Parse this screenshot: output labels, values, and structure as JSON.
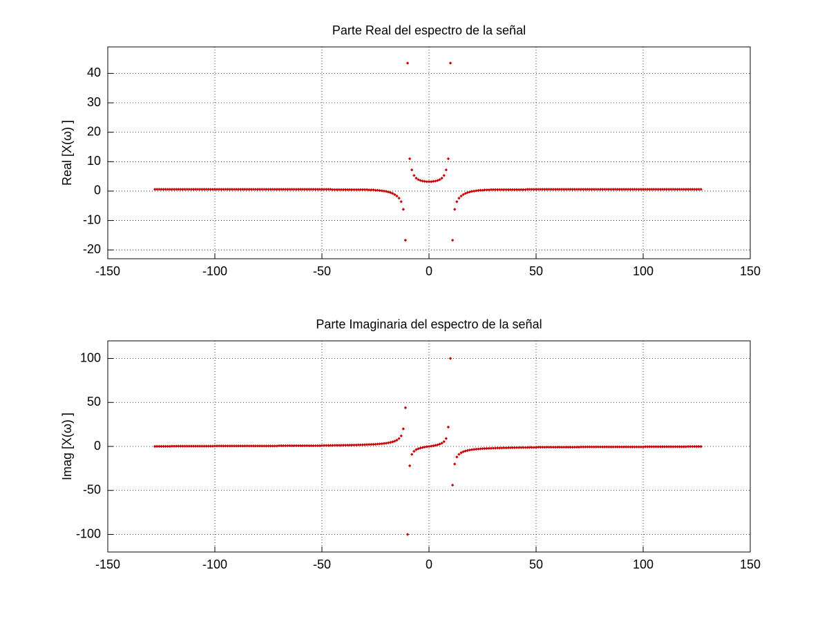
{
  "chart_data": [
    {
      "type": "scatter",
      "title": "Parte Real del espectro de la señal",
      "ylabel": "Real [X(ω) ]",
      "color": "#cc0000",
      "grid": true,
      "xlim": [
        -150,
        150
      ],
      "ylim": [
        -23,
        49
      ],
      "xticks": [
        -150,
        -100,
        -50,
        0,
        50,
        100,
        150
      ],
      "yticks": [
        -20,
        -10,
        0,
        10,
        20,
        30,
        40
      ],
      "x": [
        -128,
        -127,
        -126,
        -125,
        -124,
        -123,
        -122,
        -121,
        -120,
        -119,
        -118,
        -117,
        -116,
        -115,
        -114,
        -113,
        -112,
        -111,
        -110,
        -109,
        -108,
        -107,
        -106,
        -105,
        -104,
        -103,
        -102,
        -101,
        -100,
        -99,
        -98,
        -97,
        -96,
        -95,
        -94,
        -93,
        -92,
        -91,
        -90,
        -89,
        -88,
        -87,
        -86,
        -85,
        -84,
        -83,
        -82,
        -81,
        -80,
        -79,
        -78,
        -77,
        -76,
        -75,
        -74,
        -73,
        -72,
        -71,
        -70,
        -69,
        -68,
        -67,
        -66,
        -65,
        -64,
        -63,
        -62,
        -61,
        -60,
        -59,
        -58,
        -57,
        -56,
        -55,
        -54,
        -53,
        -52,
        -51,
        -50,
        -49,
        -48,
        -47,
        -46,
        -45,
        -44,
        -43,
        -42,
        -41,
        -40,
        -39,
        -38,
        -37,
        -36,
        -35,
        -34,
        -33,
        -32,
        -31,
        -30,
        -29,
        -28,
        -27,
        -26,
        -25,
        -24,
        -23,
        -22,
        -21,
        -20,
        -19,
        -18,
        -17,
        -16,
        -15,
        -14,
        -13,
        -12,
        -11,
        -10,
        -9,
        -8,
        -7,
        -6,
        -5,
        -4,
        -3,
        -2,
        -1,
        0,
        1,
        2,
        3,
        4,
        5,
        6,
        7,
        8,
        9,
        10,
        11,
        12,
        13,
        14,
        15,
        16,
        17,
        18,
        19,
        20,
        21,
        22,
        23,
        24,
        25,
        26,
        27,
        28,
        29,
        30,
        31,
        32,
        33,
        34,
        35,
        36,
        37,
        38,
        39,
        40,
        41,
        42,
        43,
        44,
        45,
        46,
        47,
        48,
        49,
        50,
        51,
        52,
        53,
        54,
        55,
        56,
        57,
        58,
        59,
        60,
        61,
        62,
        63,
        64,
        65,
        66,
        67,
        68,
        69,
        70,
        71,
        72,
        73,
        74,
        75,
        76,
        77,
        78,
        79,
        80,
        81,
        82,
        83,
        84,
        85,
        86,
        87,
        88,
        89,
        90,
        91,
        92,
        93,
        94,
        95,
        96,
        97,
        98,
        99,
        100,
        101,
        102,
        103,
        104,
        105,
        106,
        107,
        108,
        109,
        110,
        111,
        112,
        113,
        114,
        115,
        116,
        117,
        118,
        119,
        120,
        121,
        122,
        123,
        124,
        125,
        126,
        127
      ],
      "values": [
        0.6,
        0.6,
        0.6,
        0.6,
        0.6,
        0.6,
        0.6,
        0.6,
        0.6,
        0.6,
        0.6,
        0.6,
        0.6,
        0.6,
        0.6,
        0.6,
        0.6,
        0.6,
        0.6,
        0.6,
        0.6,
        0.6,
        0.6,
        0.6,
        0.6,
        0.6,
        0.6,
        0.6,
        0.6,
        0.6,
        0.6,
        0.6,
        0.6,
        0.6,
        0.6,
        0.6,
        0.6,
        0.6,
        0.6,
        0.6,
        0.6,
        0.6,
        0.6,
        0.6,
        0.6,
        0.6,
        0.6,
        0.6,
        0.6,
        0.6,
        0.6,
        0.6,
        0.6,
        0.6,
        0.6,
        0.6,
        0.6,
        0.6,
        0.6,
        0.6,
        0.6,
        0.6,
        0.6,
        0.6,
        0.6,
        0.6,
        0.6,
        0.6,
        0.6,
        0.6,
        0.6,
        0.6,
        0.6,
        0.6,
        0.6,
        0.6,
        0.6,
        0.6,
        0.6,
        0.6,
        0.6,
        0.6,
        0.6,
        0.5,
        0.5,
        0.5,
        0.5,
        0.5,
        0.5,
        0.5,
        0.5,
        0.5,
        0.5,
        0.5,
        0.5,
        0.5,
        0.5,
        0.5,
        0.5,
        0.5,
        0.4,
        0.4,
        0.4,
        0.3,
        0.3,
        0.2,
        0.1,
        0,
        -0.1,
        -0.3,
        -0.5,
        -0.8,
        -1.2,
        -1.7,
        -2.4,
        -3.6,
        -6.2,
        -16.7,
        43.5,
        11,
        7.2,
        5.3,
        4.4,
        3.9,
        3.6,
        3.4,
        3.3,
        3.2,
        3.2,
        3.2,
        3.3,
        3.4,
        3.6,
        3.9,
        4.4,
        5.3,
        7.2,
        11,
        43.5,
        -16.7,
        -6.2,
        -3.6,
        -2.4,
        -1.7,
        -1.2,
        -0.8,
        -0.5,
        -0.3,
        -0.1,
        0,
        0.1,
        0.2,
        0.3,
        0.3,
        0.4,
        0.4,
        0.4,
        0.5,
        0.5,
        0.5,
        0.5,
        0.5,
        0.5,
        0.5,
        0.5,
        0.5,
        0.5,
        0.5,
        0.5,
        0.5,
        0.5,
        0.5,
        0.5,
        0.5,
        0.6,
        0.6,
        0.6,
        0.6,
        0.6,
        0.6,
        0.6,
        0.6,
        0.6,
        0.6,
        0.6,
        0.6,
        0.6,
        0.6,
        0.6,
        0.6,
        0.6,
        0.6,
        0.6,
        0.6,
        0.6,
        0.6,
        0.6,
        0.6,
        0.6,
        0.6,
        0.6,
        0.6,
        0.6,
        0.6,
        0.6,
        0.6,
        0.6,
        0.6,
        0.6,
        0.6,
        0.6,
        0.6,
        0.6,
        0.6,
        0.6,
        0.6,
        0.6,
        0.6,
        0.6,
        0.6,
        0.6,
        0.6,
        0.6,
        0.6,
        0.6,
        0.6,
        0.6,
        0.6,
        0.6,
        0.6,
        0.6,
        0.6,
        0.6,
        0.6,
        0.6,
        0.6,
        0.6,
        0.6,
        0.6,
        0.6,
        0.6,
        0.6,
        0.6,
        0.6,
        0.6,
        0.6,
        0.6,
        0.6,
        0.6,
        0.6,
        0.6,
        0.6,
        0.6,
        0.6,
        0.6,
        0.6
      ]
    },
    {
      "type": "scatter",
      "title": "Parte Imaginaria del espectro de la señal",
      "ylabel": "Imag [X(ω) ]",
      "color": "#cc0000",
      "grid": true,
      "xlim": [
        -150,
        150
      ],
      "ylim": [
        -120,
        120
      ],
      "xticks": [
        -150,
        -100,
        -50,
        0,
        50,
        100,
        150
      ],
      "yticks": [
        -100,
        -50,
        0,
        50,
        100
      ],
      "x": [
        -128,
        -127,
        -126,
        -125,
        -124,
        -123,
        -122,
        -121,
        -120,
        -119,
        -118,
        -117,
        -116,
        -115,
        -114,
        -113,
        -112,
        -111,
        -110,
        -109,
        -108,
        -107,
        -106,
        -105,
        -104,
        -103,
        -102,
        -101,
        -100,
        -99,
        -98,
        -97,
        -96,
        -95,
        -94,
        -93,
        -92,
        -91,
        -90,
        -89,
        -88,
        -87,
        -86,
        -85,
        -84,
        -83,
        -82,
        -81,
        -80,
        -79,
        -78,
        -77,
        -76,
        -75,
        -74,
        -73,
        -72,
        -71,
        -70,
        -69,
        -68,
        -67,
        -66,
        -65,
        -64,
        -63,
        -62,
        -61,
        -60,
        -59,
        -58,
        -57,
        -56,
        -55,
        -54,
        -53,
        -52,
        -51,
        -50,
        -49,
        -48,
        -47,
        -46,
        -45,
        -44,
        -43,
        -42,
        -41,
        -40,
        -39,
        -38,
        -37,
        -36,
        -35,
        -34,
        -33,
        -32,
        -31,
        -30,
        -29,
        -28,
        -27,
        -26,
        -25,
        -24,
        -23,
        -22,
        -21,
        -20,
        -19,
        -18,
        -17,
        -16,
        -15,
        -14,
        -13,
        -12,
        -11,
        -10,
        -9,
        -8,
        -7,
        -6,
        -5,
        -4,
        -3,
        -2,
        -1,
        0,
        1,
        2,
        3,
        4,
        5,
        6,
        7,
        8,
        9,
        10,
        11,
        12,
        13,
        14,
        15,
        16,
        17,
        18,
        19,
        20,
        21,
        22,
        23,
        24,
        25,
        26,
        27,
        28,
        29,
        30,
        31,
        32,
        33,
        34,
        35,
        36,
        37,
        38,
        39,
        40,
        41,
        42,
        43,
        44,
        45,
        46,
        47,
        48,
        49,
        50,
        51,
        52,
        53,
        54,
        55,
        56,
        57,
        58,
        59,
        60,
        61,
        62,
        63,
        64,
        65,
        66,
        67,
        68,
        69,
        70,
        71,
        72,
        73,
        74,
        75,
        76,
        77,
        78,
        79,
        80,
        81,
        82,
        83,
        84,
        85,
        86,
        87,
        88,
        89,
        90,
        91,
        92,
        93,
        94,
        95,
        96,
        97,
        98,
        99,
        100,
        101,
        102,
        103,
        104,
        105,
        106,
        107,
        108,
        109,
        110,
        111,
        112,
        113,
        114,
        115,
        116,
        117,
        118,
        119,
        120,
        121,
        122,
        123,
        124,
        125,
        126,
        127
      ],
      "values": [
        0,
        0.1,
        0.1,
        0.1,
        0.1,
        0.1,
        0.1,
        0.1,
        0.3,
        0.3,
        0.3,
        0.3,
        0.3,
        0.3,
        0.3,
        0.3,
        0.3,
        0.3,
        0.3,
        0.3,
        0.3,
        0.3,
        0.3,
        0.3,
        0.3,
        0.3,
        0.3,
        0.3,
        0.5,
        0.5,
        0.5,
        0.5,
        0.5,
        0.5,
        0.5,
        0.5,
        0.5,
        0.5,
        0.5,
        0.5,
        0.5,
        0.5,
        0.5,
        0.5,
        0.5,
        0.5,
        0.5,
        0.5,
        0.5,
        0.5,
        0.5,
        0.5,
        0.5,
        0.5,
        0.5,
        0.5,
        0.5,
        0.5,
        0.8,
        0.8,
        0.8,
        0.8,
        0.8,
        0.8,
        0.8,
        0.8,
        0.8,
        0.8,
        0.8,
        0.8,
        0.8,
        0.8,
        0.8,
        0.8,
        0.8,
        0.8,
        0.8,
        0.8,
        1,
        1.1,
        1.1,
        1.1,
        1.2,
        1.2,
        1.2,
        1.3,
        1.3,
        1.3,
        1.4,
        1.4,
        1.5,
        1.5,
        1.6,
        1.6,
        1.7,
        1.8,
        1.8,
        1.9,
        2,
        2.1,
        2.2,
        2.3,
        2.4,
        2.5,
        2.7,
        2.9,
        3.1,
        3.4,
        3.7,
        4.1,
        4.6,
        5.2,
        6,
        7.2,
        9,
        12,
        20,
        44,
        -100,
        -22,
        -9,
        -5.5,
        -3.7,
        -2.6,
        -1.8,
        -1.2,
        -0.7,
        -0.3,
        0,
        0.3,
        0.7,
        1.2,
        1.8,
        2.6,
        3.7,
        5.5,
        9,
        22,
        100,
        -44,
        -20,
        -12,
        -9,
        -7.2,
        -6,
        -5.2,
        -4.6,
        -4.1,
        -3.7,
        -3.4,
        -3.1,
        -2.9,
        -2.7,
        -2.5,
        -2.4,
        -2.3,
        -2.2,
        -2.1,
        -2,
        -1.9,
        -1.8,
        -1.8,
        -1.7,
        -1.6,
        -1.6,
        -1.5,
        -1.5,
        -1.4,
        -1.4,
        -1.3,
        -1.3,
        -1.3,
        -1.2,
        -1.2,
        -1.2,
        -1.1,
        -1.1,
        -1.1,
        -1,
        -0.8,
        -0.8,
        -0.8,
        -0.8,
        -0.8,
        -0.8,
        -0.8,
        -0.8,
        -0.8,
        -0.8,
        -0.8,
        -0.8,
        -0.8,
        -0.8,
        -0.8,
        -0.8,
        -0.8,
        -0.8,
        -0.8,
        -0.8,
        -0.5,
        -0.5,
        -0.5,
        -0.5,
        -0.5,
        -0.5,
        -0.5,
        -0.5,
        -0.5,
        -0.5,
        -0.5,
        -0.5,
        -0.5,
        -0.5,
        -0.5,
        -0.5,
        -0.5,
        -0.5,
        -0.5,
        -0.5,
        -0.5,
        -0.5,
        -0.5,
        -0.5,
        -0.5,
        -0.5,
        -0.5,
        -0.5,
        -0.5,
        -0.5,
        -0.3,
        -0.3,
        -0.3,
        -0.3,
        -0.3,
        -0.3,
        -0.3,
        -0.3,
        -0.3,
        -0.3,
        -0.3,
        -0.3,
        -0.3,
        -0.3,
        -0.3,
        -0.3,
        -0.3,
        -0.3,
        -0.3,
        -0.3,
        -0.1,
        -0.1,
        -0.1,
        -0.1,
        -0.1,
        -0.1,
        -0.1
      ]
    }
  ]
}
